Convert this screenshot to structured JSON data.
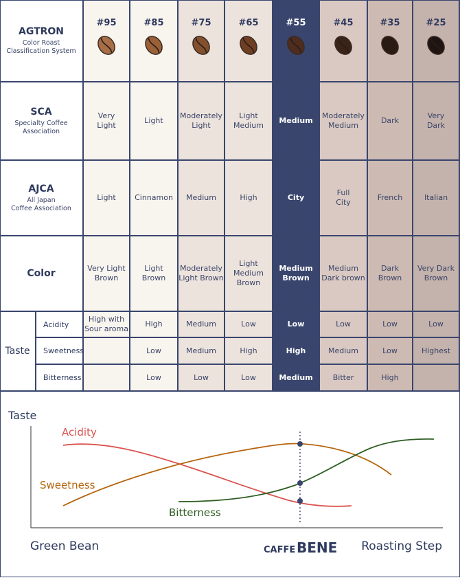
{
  "rows": {
    "agtron": {
      "title": "AGTRON",
      "subtitle": "Color Roast\nClassification System"
    },
    "sca": {
      "title": "SCA",
      "subtitle": "Specialty Coffee\nAssociation"
    },
    "ajca": {
      "title": "AJCA",
      "subtitle": "All Japan\nCoffee Association"
    },
    "color": {
      "title": "Color"
    },
    "taste": {
      "title": "Taste",
      "acidity": "Acidity",
      "sweetness": "Sweetness",
      "bitterness": "Bitterness"
    }
  },
  "columns": [
    {
      "agtron": "#95",
      "sca": "Very\nLight",
      "ajca": "Light",
      "color": "Very Light\nBrown",
      "acidity": "High with\nSour aroma",
      "sweetness": "",
      "bitterness": "",
      "bg": "#f8f4ee",
      "bean": "#a86e45"
    },
    {
      "agtron": "#85",
      "sca": "Light",
      "ajca": "Cinnamon",
      "color": "Light\nBrown",
      "acidity": "High",
      "sweetness": "Low",
      "bitterness": "Low",
      "bg": "#f8f4ee",
      "bean": "#9a6038"
    },
    {
      "agtron": "#75",
      "sca": "Moderately\nLight",
      "ajca": "Medium",
      "color": "Moderately\nLight Brown",
      "acidity": "Medium",
      "sweetness": "Medium",
      "bitterness": "Low",
      "bg": "#ece3dd",
      "bean": "#83502e"
    },
    {
      "agtron": "#65",
      "sca": "Light\nMedium",
      "ajca": "High",
      "color": "Light\nMedium\nBrown",
      "acidity": "Low",
      "sweetness": "High",
      "bitterness": "Low",
      "bg": "#ece3dd",
      "bean": "#6e3f22"
    },
    {
      "agtron": "#55",
      "sca": "Medium",
      "ajca": "City",
      "color": "Medium\nBrown",
      "acidity": "Low",
      "sweetness": "High",
      "bitterness": "Medium",
      "bg": "#39456d",
      "bean": "#4e2c1e",
      "highlight": true
    },
    {
      "agtron": "#45",
      "sca": "Moderately\nMedium",
      "ajca": "Full\nCity",
      "color": "Medium\nDark brown",
      "acidity": "Low",
      "sweetness": "Medium",
      "bitterness": "Bitter",
      "bg": "#d9c9c2",
      "bean": "#3a2418"
    },
    {
      "agtron": "#35",
      "sca": "Dark",
      "ajca": "French",
      "color": "Dark\nBrown",
      "acidity": "Low",
      "sweetness": "Low",
      "bitterness": "High",
      "bg": "#ccbab3",
      "bean": "#2a1a14"
    },
    {
      "agtron": "#25",
      "sca": "Very\nDark",
      "ajca": "Italian",
      "color": "Very Dark\nBrown",
      "acidity": "Low",
      "sweetness": "Highest",
      "bitterness": "",
      "bg": "#c4b2ac",
      "bean": "#1e1512"
    }
  ],
  "chart": {
    "y_axis_label": "Taste",
    "x_start_label": "Green Bean",
    "x_end_label": "Roasting Step",
    "brand_prefix": "CAFFE",
    "brand_name": "BENE",
    "curves": [
      {
        "name": "Acidity",
        "color": "#d9534f"
      },
      {
        "name": "Sweetness",
        "color": "#b5650d"
      },
      {
        "name": "Bitterness",
        "color": "#2f5e24"
      }
    ]
  },
  "colors": {
    "navy": "#39456d",
    "border": "#39456d"
  }
}
